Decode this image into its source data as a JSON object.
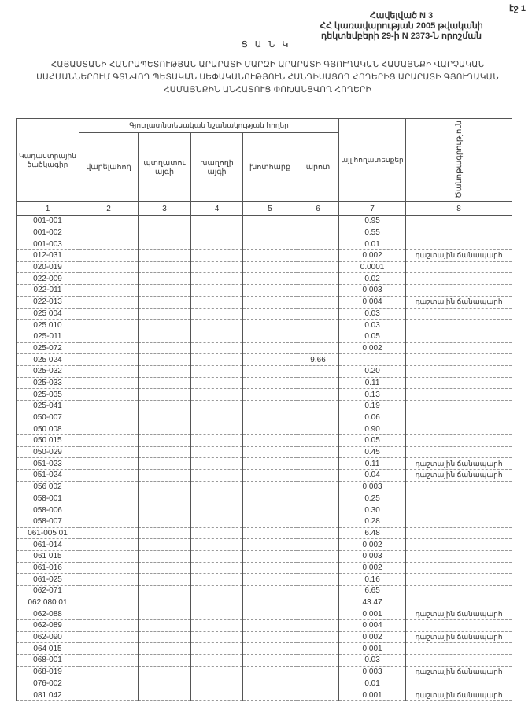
{
  "page_label": "էջ 1",
  "annex": [
    "Հավելված N 3",
    "ՀՀ կառավարության 2005 թվականի",
    "դեկտեմբերի 29-ի N 2373-Ն որոշման"
  ],
  "list_title": "Ց Ա Ն Կ",
  "doc_title": "ՀԱՅԱՍՏԱՆԻ ՀԱՆՐԱՊԵՏՈՒԹՅԱՆ ԱՐԱՐԱՏԻ ՄԱՐԶԻ ԱՐԱՐԱՏԻ ԳՅՈՒՂԱԿԱՆ ՀԱՄԱՅՆՔԻ ՎԱՐՉԱԿԱՆ ՍԱՀՄԱՆՆԵՐՈՒՄ ԳՏՆՎՈՂ ՊԵՏԱԿԱՆ ՍԵՓԱԿԱՆՈՒԹՅՈՒՆ ՀԱՆԴԻՍԱՑՈՂ ՀՈՂԵՐԻՑ ԱՐԱՐԱՏԻ ԳՅՈՒՂԱԿԱՆ ՀԱՄԱՅՆՔԻՆ ԱՆՀԱՏՈՒՑ ՓՈԽԱՆՑՎՈՂ ՀՈՂԵՐԻ",
  "table": {
    "group_header": "Գյուղատնտեսական նշանակության հողեր",
    "columns": [
      "Կադաստրային ծածկագիր",
      "վարելահող",
      "պտղատու այգի",
      "խաղողի այգի",
      "խոտհարք",
      "արոտ",
      "այլ հողատեսքեր",
      "Ծանոթագրություն"
    ],
    "column_numbers": [
      "1",
      "2",
      "3",
      "4",
      "5",
      "6",
      "7",
      "8"
    ],
    "rows": [
      {
        "code": "001-001",
        "c6": "",
        "c7": "0.95",
        "note": ""
      },
      {
        "code": "001-002",
        "c6": "",
        "c7": "0.55",
        "note": ""
      },
      {
        "code": "001-003",
        "c6": "",
        "c7": "0.01",
        "note": ""
      },
      {
        "code": "012-031",
        "c6": "",
        "c7": "0.002",
        "note": "դաշտային ճանապարհ"
      },
      {
        "code": "020-019",
        "c6": "",
        "c7": "0.0001",
        "note": ""
      },
      {
        "code": "022-009",
        "c6": "",
        "c7": "0.02",
        "note": ""
      },
      {
        "code": "022-011",
        "c6": "",
        "c7": "0.003",
        "note": ""
      },
      {
        "code": "022-013",
        "c6": "",
        "c7": "0.004",
        "note": "դաշտային ճանապարհ"
      },
      {
        "code": "025 004",
        "c6": "",
        "c7": "0.03",
        "note": ""
      },
      {
        "code": "025 010",
        "c6": "",
        "c7": "0.03",
        "note": ""
      },
      {
        "code": "025-011",
        "c6": "",
        "c7": "0.05",
        "note": ""
      },
      {
        "code": "025-072",
        "c6": "",
        "c7": "0.002",
        "note": ""
      },
      {
        "code": "025 024",
        "c6": "9.66",
        "c7": "",
        "note": ""
      },
      {
        "code": "025-032",
        "c6": "",
        "c7": "0.20",
        "note": ""
      },
      {
        "code": "025-033",
        "c6": "",
        "c7": "0.11",
        "note": ""
      },
      {
        "code": "025-035",
        "c6": "",
        "c7": "0.13",
        "note": ""
      },
      {
        "code": "025-041",
        "c6": "",
        "c7": "0.19",
        "note": ""
      },
      {
        "code": "050-007",
        "c6": "",
        "c7": "0.06",
        "note": ""
      },
      {
        "code": "050 008",
        "c6": "",
        "c7": "0.90",
        "note": ""
      },
      {
        "code": "050 015",
        "c6": "",
        "c7": "0.05",
        "note": ""
      },
      {
        "code": "050-029",
        "c6": "",
        "c7": "0.45",
        "note": ""
      },
      {
        "code": "051-023",
        "c6": "",
        "c7": "0.11",
        "note": "դաշտային ճանապարհ"
      },
      {
        "code": "051-024",
        "c6": "",
        "c7": "0.04",
        "note": "դաշտային ճանապարհ"
      },
      {
        "code": "056 002",
        "c6": "",
        "c7": "0.003",
        "note": ""
      },
      {
        "code": "058-001",
        "c6": "",
        "c7": "0.25",
        "note": ""
      },
      {
        "code": "058-006",
        "c6": "",
        "c7": "0.30",
        "note": ""
      },
      {
        "code": "058-007",
        "c6": "",
        "c7": "0.28",
        "note": ""
      },
      {
        "code": "061-005 01",
        "c6": "",
        "c7": "6.48",
        "note": ""
      },
      {
        "code": "061-014",
        "c6": "",
        "c7": "0.002",
        "note": ""
      },
      {
        "code": "061 015",
        "c6": "",
        "c7": "0.003",
        "note": ""
      },
      {
        "code": "061-016",
        "c6": "",
        "c7": "0.002",
        "note": ""
      },
      {
        "code": "061-025",
        "c6": "",
        "c7": "0.16",
        "note": ""
      },
      {
        "code": "062-071",
        "c6": "",
        "c7": "6.65",
        "note": ""
      },
      {
        "code": "062 080 01",
        "c6": "",
        "c7": "43.47",
        "note": ""
      },
      {
        "code": "062-088",
        "c6": "",
        "c7": "0.001",
        "note": "դաշտային ճանապարհ"
      },
      {
        "code": "062-089",
        "c6": "",
        "c7": "0.004",
        "note": ""
      },
      {
        "code": "062-090",
        "c6": "",
        "c7": "0.002",
        "note": "դաշտային ճանապարհ"
      },
      {
        "code": "064 015",
        "c6": "",
        "c7": "0.001",
        "note": ""
      },
      {
        "code": "068-001",
        "c6": "",
        "c7": "0.03",
        "note": ""
      },
      {
        "code": "068-019",
        "c6": "",
        "c7": "0.003",
        "note": "դաշտային ճանապարհ"
      },
      {
        "code": "076-002",
        "c6": "",
        "c7": "0.01",
        "note": ""
      },
      {
        "code": "081 042",
        "c6": "",
        "c7": "0.001",
        "note": "դաշտային ճանապարհ"
      }
    ]
  }
}
